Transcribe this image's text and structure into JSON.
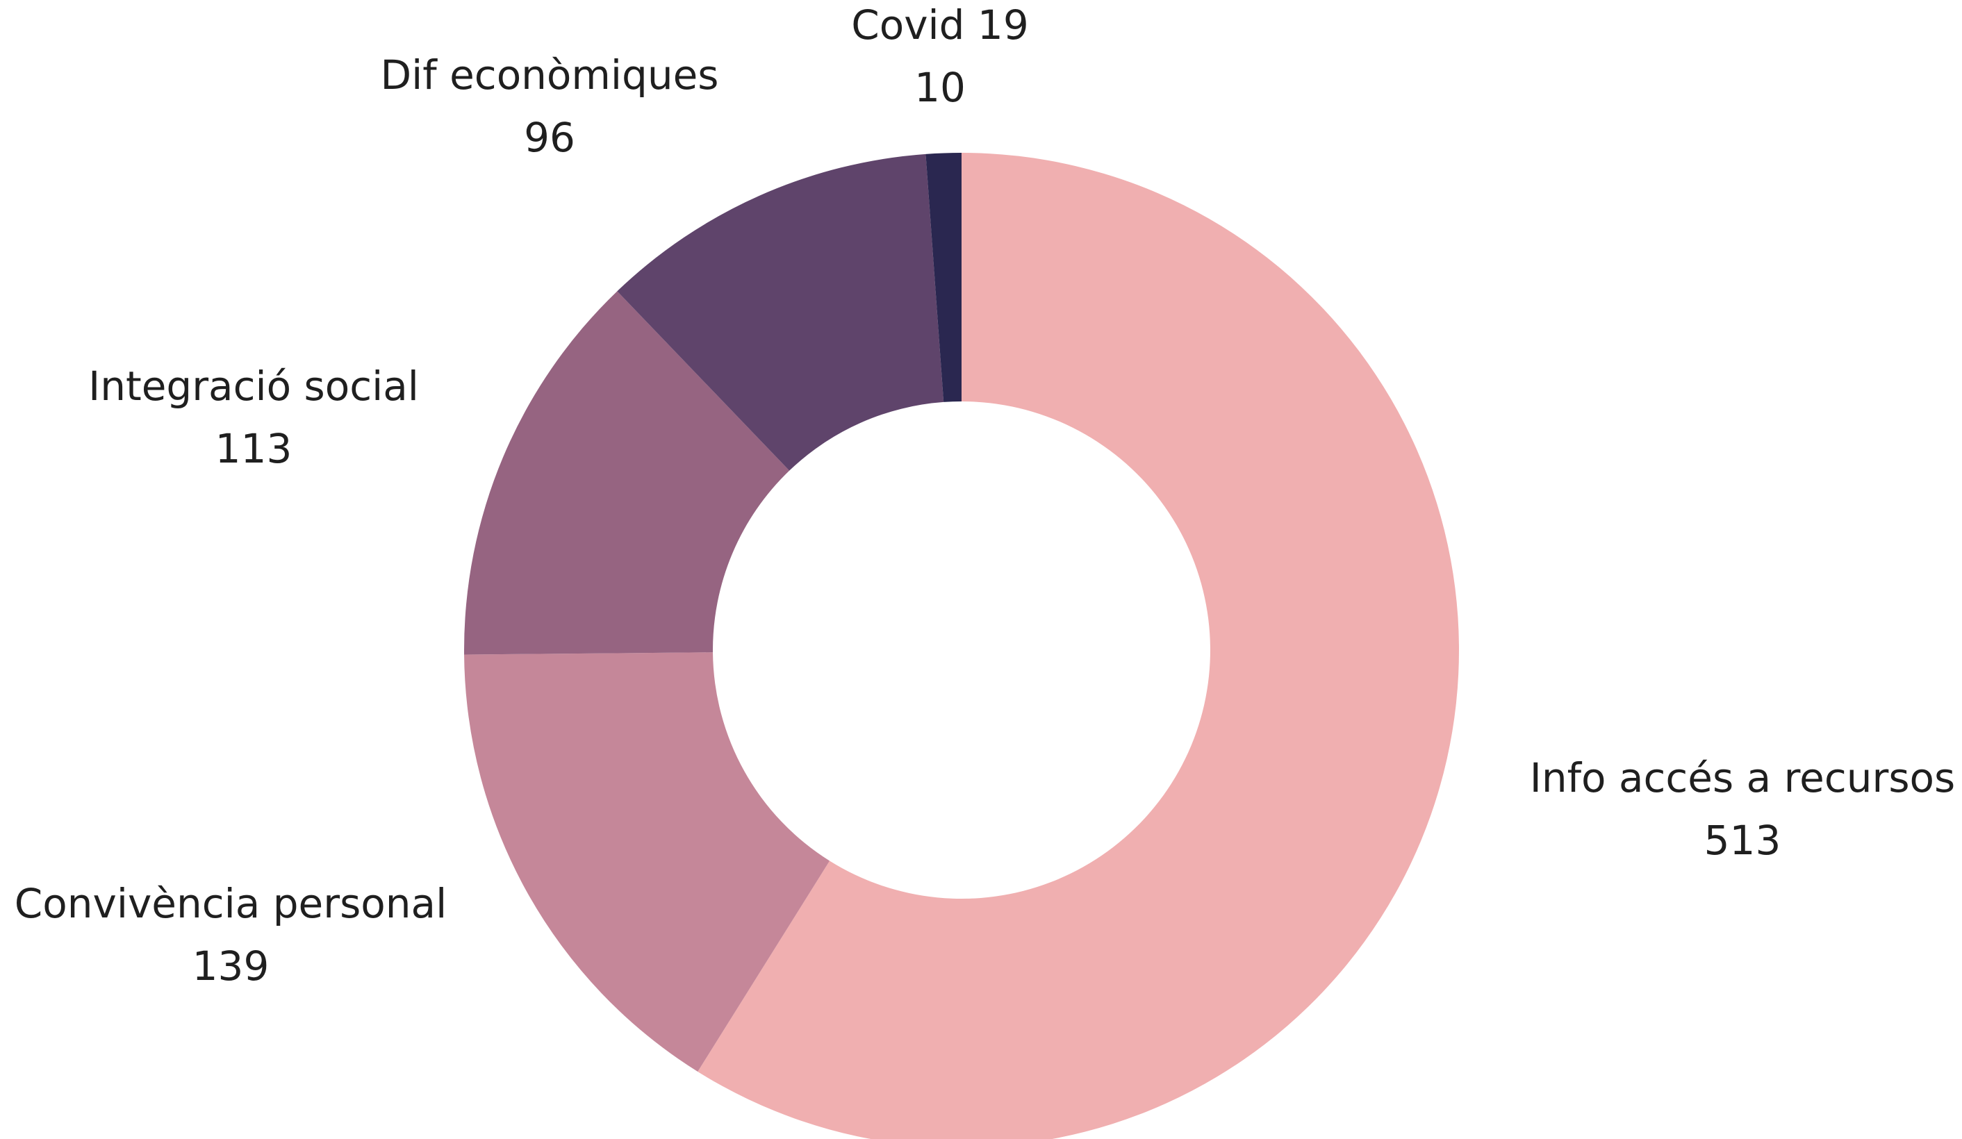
{
  "chart_data": {
    "type": "donut",
    "categories": [
      "Info accés a recursos",
      "Convivència personal",
      "Integració social",
      "Dif econòmiques",
      "Covid 19"
    ],
    "values": [
      513,
      139,
      113,
      96,
      10
    ],
    "colors": [
      "#f0afb0",
      "#c58799",
      "#966481",
      "#5f446b",
      "#2a2750"
    ]
  }
}
